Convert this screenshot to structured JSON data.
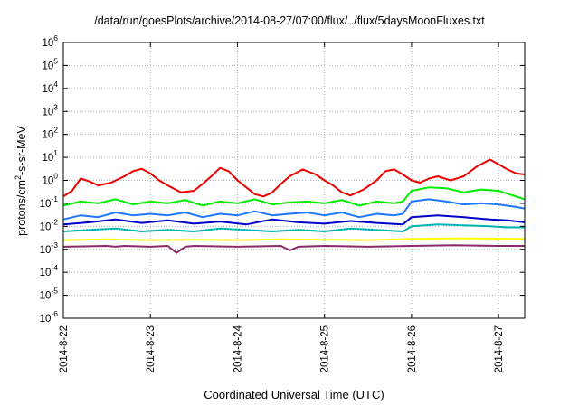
{
  "chart_data": {
    "type": "line",
    "title": "/data/run/goesPlots/archive/2014-08-27/07:00/flux/../flux/5daysMoonFluxes.txt",
    "xlabel": "Coordinated Universal Time (UTC)",
    "ylabel": "protons/cm2-s-sr-MeV",
    "y_scale": "log",
    "ylim_exponents": [
      -6,
      6
    ],
    "y_ticks": [
      {
        "base": "10",
        "exp": "-6"
      },
      {
        "base": "10",
        "exp": "-5"
      },
      {
        "base": "10",
        "exp": "-4"
      },
      {
        "base": "10",
        "exp": "-3"
      },
      {
        "base": "10",
        "exp": "-2"
      },
      {
        "base": "10",
        "exp": "-1"
      },
      {
        "base": "10",
        "exp": "0"
      },
      {
        "base": "10",
        "exp": "1"
      },
      {
        "base": "10",
        "exp": "2"
      },
      {
        "base": "10",
        "exp": "3"
      },
      {
        "base": "10",
        "exp": "4"
      },
      {
        "base": "10",
        "exp": "5"
      },
      {
        "base": "10",
        "exp": "6"
      }
    ],
    "x_ticks": [
      "2014-8-22",
      "2014-8-23",
      "2014-8-24",
      "2014-8-25",
      "2014-8-26",
      "2014-8-27"
    ],
    "x_range_days": [
      0,
      5.3
    ],
    "grid": true,
    "legend": "none",
    "series": [
      {
        "color": "#ee0000",
        "x": [
          0,
          0.1,
          0.2,
          0.3,
          0.4,
          0.55,
          0.7,
          0.8,
          0.9,
          1.0,
          1.1,
          1.2,
          1.35,
          1.5,
          1.6,
          1.7,
          1.8,
          1.9,
          2.0,
          2.1,
          2.2,
          2.3,
          2.4,
          2.5,
          2.6,
          2.75,
          2.9,
          3.0,
          3.1,
          3.2,
          3.3,
          3.45,
          3.6,
          3.7,
          3.8,
          3.9,
          4.0,
          4.1,
          4.2,
          4.3,
          4.45,
          4.6,
          4.75,
          4.9,
          5.0,
          5.1,
          5.2,
          5.3
        ],
        "y": [
          0.2,
          0.35,
          1.2,
          0.9,
          0.6,
          0.8,
          1.5,
          2.5,
          3.2,
          2.0,
          1.0,
          0.6,
          0.3,
          0.35,
          0.7,
          1.5,
          3.5,
          2.5,
          1.0,
          0.5,
          0.25,
          0.2,
          0.3,
          0.7,
          1.5,
          3.0,
          1.8,
          1.0,
          0.6,
          0.3,
          0.22,
          0.4,
          1.0,
          2.5,
          3.0,
          1.8,
          1.0,
          0.8,
          1.2,
          1.5,
          1.0,
          1.5,
          4.0,
          8.0,
          5.0,
          3.0,
          2.0,
          1.8
        ]
      },
      {
        "color": "#00ee00",
        "x": [
          0,
          0.2,
          0.4,
          0.6,
          0.8,
          1.0,
          1.2,
          1.4,
          1.6,
          1.8,
          2.0,
          2.2,
          2.4,
          2.6,
          2.8,
          3.0,
          3.2,
          3.4,
          3.6,
          3.8,
          3.9,
          4.0,
          4.2,
          4.4,
          4.6,
          4.8,
          5.0,
          5.2,
          5.3
        ],
        "y": [
          0.08,
          0.12,
          0.1,
          0.15,
          0.09,
          0.12,
          0.1,
          0.14,
          0.08,
          0.12,
          0.1,
          0.15,
          0.09,
          0.11,
          0.12,
          0.1,
          0.14,
          0.08,
          0.12,
          0.1,
          0.12,
          0.35,
          0.5,
          0.45,
          0.3,
          0.4,
          0.35,
          0.2,
          0.15
        ]
      },
      {
        "color": "#00b4b4",
        "x": [
          0,
          0.3,
          0.6,
          0.9,
          1.2,
          1.5,
          1.8,
          2.1,
          2.4,
          2.7,
          3.0,
          3.3,
          3.6,
          3.9,
          4.0,
          4.3,
          4.6,
          4.9,
          5.1,
          5.3
        ],
        "y": [
          0.006,
          0.007,
          0.008,
          0.006,
          0.007,
          0.006,
          0.008,
          0.007,
          0.006,
          0.007,
          0.006,
          0.008,
          0.007,
          0.006,
          0.01,
          0.012,
          0.011,
          0.01,
          0.009,
          0.009
        ]
      },
      {
        "color": "#1e78ff",
        "x": [
          0,
          0.2,
          0.4,
          0.6,
          0.8,
          1.0,
          1.2,
          1.4,
          1.6,
          1.8,
          2.0,
          2.2,
          2.4,
          2.6,
          2.8,
          3.0,
          3.2,
          3.4,
          3.6,
          3.8,
          3.9,
          4.0,
          4.2,
          4.4,
          4.6,
          4.8,
          5.0,
          5.2,
          5.3
        ],
        "y": [
          0.02,
          0.03,
          0.025,
          0.04,
          0.03,
          0.035,
          0.03,
          0.04,
          0.025,
          0.035,
          0.03,
          0.045,
          0.03,
          0.035,
          0.04,
          0.03,
          0.04,
          0.025,
          0.035,
          0.03,
          0.035,
          0.12,
          0.15,
          0.12,
          0.09,
          0.1,
          0.09,
          0.07,
          0.06
        ]
      },
      {
        "color": "#0000cc",
        "x": [
          0,
          0.3,
          0.6,
          0.9,
          1.2,
          1.5,
          1.8,
          2.1,
          2.4,
          2.7,
          3.0,
          3.3,
          3.6,
          3.9,
          4.0,
          4.3,
          4.6,
          4.9,
          5.1,
          5.3
        ],
        "y": [
          0.012,
          0.015,
          0.02,
          0.014,
          0.018,
          0.013,
          0.016,
          0.012,
          0.02,
          0.015,
          0.013,
          0.017,
          0.014,
          0.012,
          0.025,
          0.03,
          0.025,
          0.02,
          0.018,
          0.015
        ]
      },
      {
        "color": "#ffff00",
        "x": [
          0,
          0.5,
          1.0,
          1.5,
          2.0,
          2.5,
          3.0,
          3.5,
          4.0,
          4.5,
          5.0,
          5.3
        ],
        "y": [
          0.0025,
          0.0027,
          0.0025,
          0.0026,
          0.0025,
          0.0027,
          0.0026,
          0.0025,
          0.0028,
          0.003,
          0.0029,
          0.0028
        ]
      },
      {
        "color": "#8b2a6b",
        "x": [
          0,
          0.5,
          0.6,
          0.7,
          1.0,
          1.2,
          1.3,
          1.4,
          1.5,
          2.0,
          2.5,
          2.6,
          2.7,
          3.0,
          3.5,
          4.0,
          4.5,
          5.0,
          5.3
        ],
        "y": [
          0.0013,
          0.0014,
          0.0013,
          0.0014,
          0.0013,
          0.0014,
          0.0007,
          0.0013,
          0.0014,
          0.0013,
          0.0014,
          0.0009,
          0.0013,
          0.0014,
          0.0013,
          0.0014,
          0.0015,
          0.0014,
          0.0014
        ]
      }
    ]
  }
}
